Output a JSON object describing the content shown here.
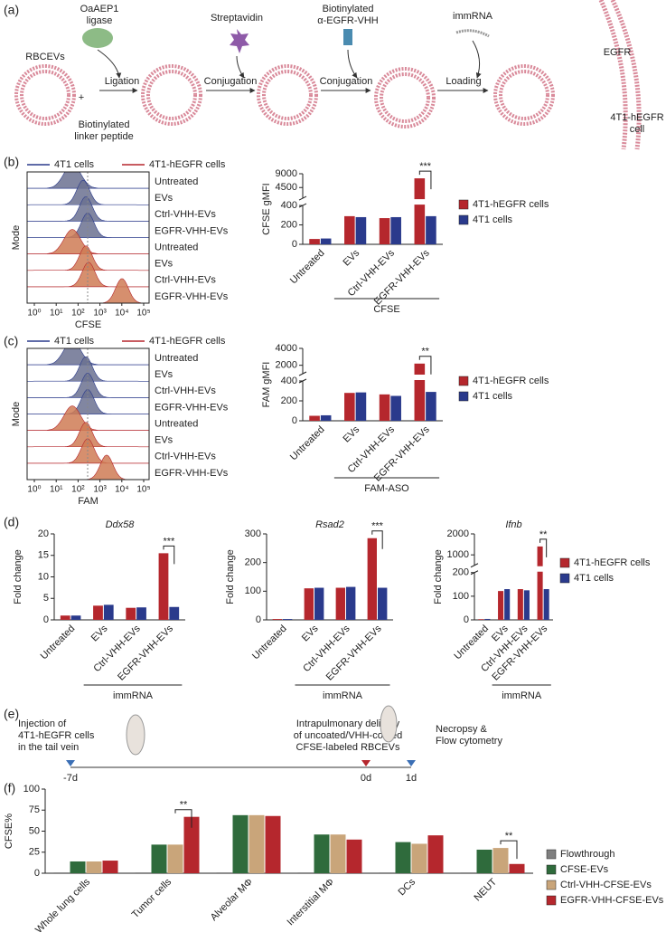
{
  "panels": [
    "(a)",
    "(b)",
    "(c)",
    "(d)",
    "(e)",
    "(f)"
  ],
  "schematic": {
    "ligase": [
      "OaAEP1",
      "ligase"
    ],
    "streptavidin": "Streptavidin",
    "vhh": [
      "Biotinylated",
      "α-EGFR-VHH"
    ],
    "immrna": "immRNA",
    "rbcevs": "RBCEVs",
    "plus": "+",
    "linker": [
      "Biotinylated",
      "linker peptide"
    ],
    "steps": [
      "Ligation",
      "Conjugation",
      "Conjugation",
      "Loading"
    ],
    "egfr": "EGFR",
    "cell": [
      "4T1-hEGFR",
      "cell"
    ]
  },
  "histograms": [
    {
      "legend": [
        "4T1 cells",
        "4T1-hEGFR cells"
      ],
      "colors": [
        "#2a3a8c",
        "#b5272d"
      ],
      "rows": [
        "Untreated",
        "EVs",
        "Ctrl-VHH-EVs",
        "EGFR-VHH-EVs",
        "Untreated",
        "EVs",
        "Ctrl-VHH-EVs",
        "EGFR-VHH-EVs"
      ],
      "xticks": [
        "10⁰",
        "10¹",
        "10²",
        "10³",
        "10⁴",
        "10⁵"
      ],
      "xlabel": "CFSE",
      "ylabel": "Mode"
    },
    {
      "legend": [
        "4T1 cells",
        "4T1-hEGFR cells"
      ],
      "colors": [
        "#2a3a8c",
        "#b5272d"
      ],
      "rows": [
        "Untreated",
        "EVs",
        "Ctrl-VHH-EVs",
        "EGFR-VHH-EVs",
        "Untreated",
        "EVs",
        "Ctrl-VHH-EVs",
        "EGFR-VHH-EVs"
      ],
      "xticks": [
        "10⁰",
        "10¹",
        "10²",
        "10³",
        "10⁴",
        "10⁵"
      ],
      "xlabel": "FAM",
      "ylabel": "Mode"
    }
  ],
  "chart_data": [
    {
      "type": "bar",
      "ylabel": "CFSE gMFI",
      "categories": [
        "Untreated",
        "EVs",
        "Ctrl-VHH-EVs",
        "EGFR-VHH-EVs"
      ],
      "series": [
        {
          "name": "4T1-hEGFR cells",
          "color": "#b5272d",
          "values": [
            55,
            290,
            270,
            7500
          ]
        },
        {
          "name": "4T1 cells",
          "color": "#2a3a8c",
          "values": [
            60,
            280,
            280,
            290
          ]
        }
      ],
      "ylim": [
        0,
        9000
      ],
      "ybreak": [
        400,
        1000
      ],
      "yticks": [
        0,
        200,
        400,
        4500,
        9000
      ],
      "legend": true,
      "group_label": "CFSE",
      "annotations": [
        {
          "text": "***",
          "x": "EGFR-VHH-EVs"
        }
      ]
    },
    {
      "type": "bar",
      "ylabel": "FAM gMFI",
      "categories": [
        "Untreated",
        "EVs",
        "Ctrl-VHH-EVs",
        "EGFR-VHH-EVs"
      ],
      "series": [
        {
          "name": "4T1-hEGFR cells",
          "color": "#b5272d",
          "values": [
            50,
            280,
            265,
            2200
          ]
        },
        {
          "name": "4T1 cells",
          "color": "#2a3a8c",
          "values": [
            55,
            285,
            250,
            290
          ]
        }
      ],
      "ylim": [
        0,
        4000
      ],
      "ybreak": [
        400,
        1000
      ],
      "yticks": [
        0,
        200,
        400,
        2000,
        4000
      ],
      "legend": true,
      "group_label": "FAM-ASO",
      "annotations": [
        {
          "text": "**",
          "x": "EGFR-VHH-EVs"
        }
      ]
    },
    {
      "type": "bar",
      "title": "Ddx58",
      "ylabel": "Fold change",
      "categories": [
        "Untreated",
        "EVs",
        "Ctrl-VHH-EVs",
        "EGFR-VHH-EVs"
      ],
      "series": [
        {
          "color": "#b5272d",
          "values": [
            1,
            3.3,
            2.8,
            15.5
          ]
        },
        {
          "color": "#2a3a8c",
          "values": [
            1,
            3.5,
            2.9,
            3
          ]
        }
      ],
      "ylim": [
        0,
        20
      ],
      "yticks": [
        0,
        5,
        10,
        15,
        20
      ],
      "legend": false,
      "group_label": "immRNA",
      "annotations": [
        {
          "text": "***",
          "x": "EGFR-VHH-EVs"
        }
      ]
    },
    {
      "type": "bar",
      "title": "Rsad2",
      "ylabel": "Fold change",
      "categories": [
        "Untreated",
        "EVs",
        "Ctrl-VHH-EVs",
        "EGFR-VHH-EVs"
      ],
      "series": [
        {
          "color": "#b5272d",
          "values": [
            3,
            110,
            112,
            285
          ]
        },
        {
          "color": "#2a3a8c",
          "values": [
            3,
            112,
            115,
            112
          ]
        }
      ],
      "ylim": [
        0,
        300
      ],
      "yticks": [
        0,
        100,
        200,
        300
      ],
      "legend": false,
      "group_label": "immRNA",
      "annotations": [
        {
          "text": "***",
          "x": "EGFR-VHH-EVs"
        }
      ]
    },
    {
      "type": "bar",
      "title": "Ifnb",
      "ylabel": "Fold change",
      "categories": [
        "Untreated",
        "EVs",
        "Ctrl-VHH-EVs",
        "EGFR-VHH-EVs"
      ],
      "series": [
        {
          "name": "4T1-hEGFR cells",
          "color": "#b5272d",
          "values": [
            3,
            122,
            130,
            1400
          ]
        },
        {
          "name": "4T1 cells",
          "color": "#2a3a8c",
          "values": [
            4,
            130,
            125,
            130
          ]
        }
      ],
      "ylim": [
        0,
        2000
      ],
      "ybreak": [
        200,
        500
      ],
      "yticks": [
        0,
        100,
        200,
        1000,
        2000
      ],
      "legend": true,
      "group_label": "immRNA",
      "annotations": [
        {
          "text": "**",
          "x": "EGFR-VHH-EVs"
        }
      ]
    },
    {
      "type": "bar",
      "ylabel": "CFSE%",
      "categories": [
        "Whole lung cells",
        "Tumor cells",
        "Alveolar MΦ",
        "Interstitial MΦ",
        "DCs",
        "NEUT"
      ],
      "series": [
        {
          "name": "Flowthrough",
          "color": "#7f7f7f",
          "values": [
            1,
            1,
            1,
            1,
            1,
            1
          ]
        },
        {
          "name": "CFSE-EVs",
          "color": "#2f6b3c",
          "values": [
            14,
            34,
            69,
            46,
            37,
            28
          ]
        },
        {
          "name": "Ctrl-VHH-CFSE-EVs",
          "color": "#c9a57a",
          "values": [
            14,
            34,
            69,
            46,
            35,
            30
          ]
        },
        {
          "name": "EGFR-VHH-CFSE-EVs",
          "color": "#b5272d",
          "values": [
            15,
            67,
            68,
            40,
            45,
            11
          ]
        }
      ],
      "ylim": [
        0,
        100
      ],
      "yticks": [
        0,
        25,
        50,
        75,
        100
      ],
      "legend": true,
      "annotations": [
        {
          "text": "**",
          "x": "Tumor cells"
        },
        {
          "text": "**",
          "x": "NEUT"
        }
      ]
    }
  ],
  "timeline": {
    "left": [
      "Injection of",
      "4T1-hEGFR cells",
      "in the tail vein"
    ],
    "middle": [
      "Intrapulmonary delivery",
      "of uncoated/VHH-coated",
      "CFSE-labeled RBCEVs"
    ],
    "right": [
      "Necropsy &",
      "Flow cytometry"
    ],
    "ticks": [
      "-7d",
      "0d",
      "1d"
    ]
  }
}
